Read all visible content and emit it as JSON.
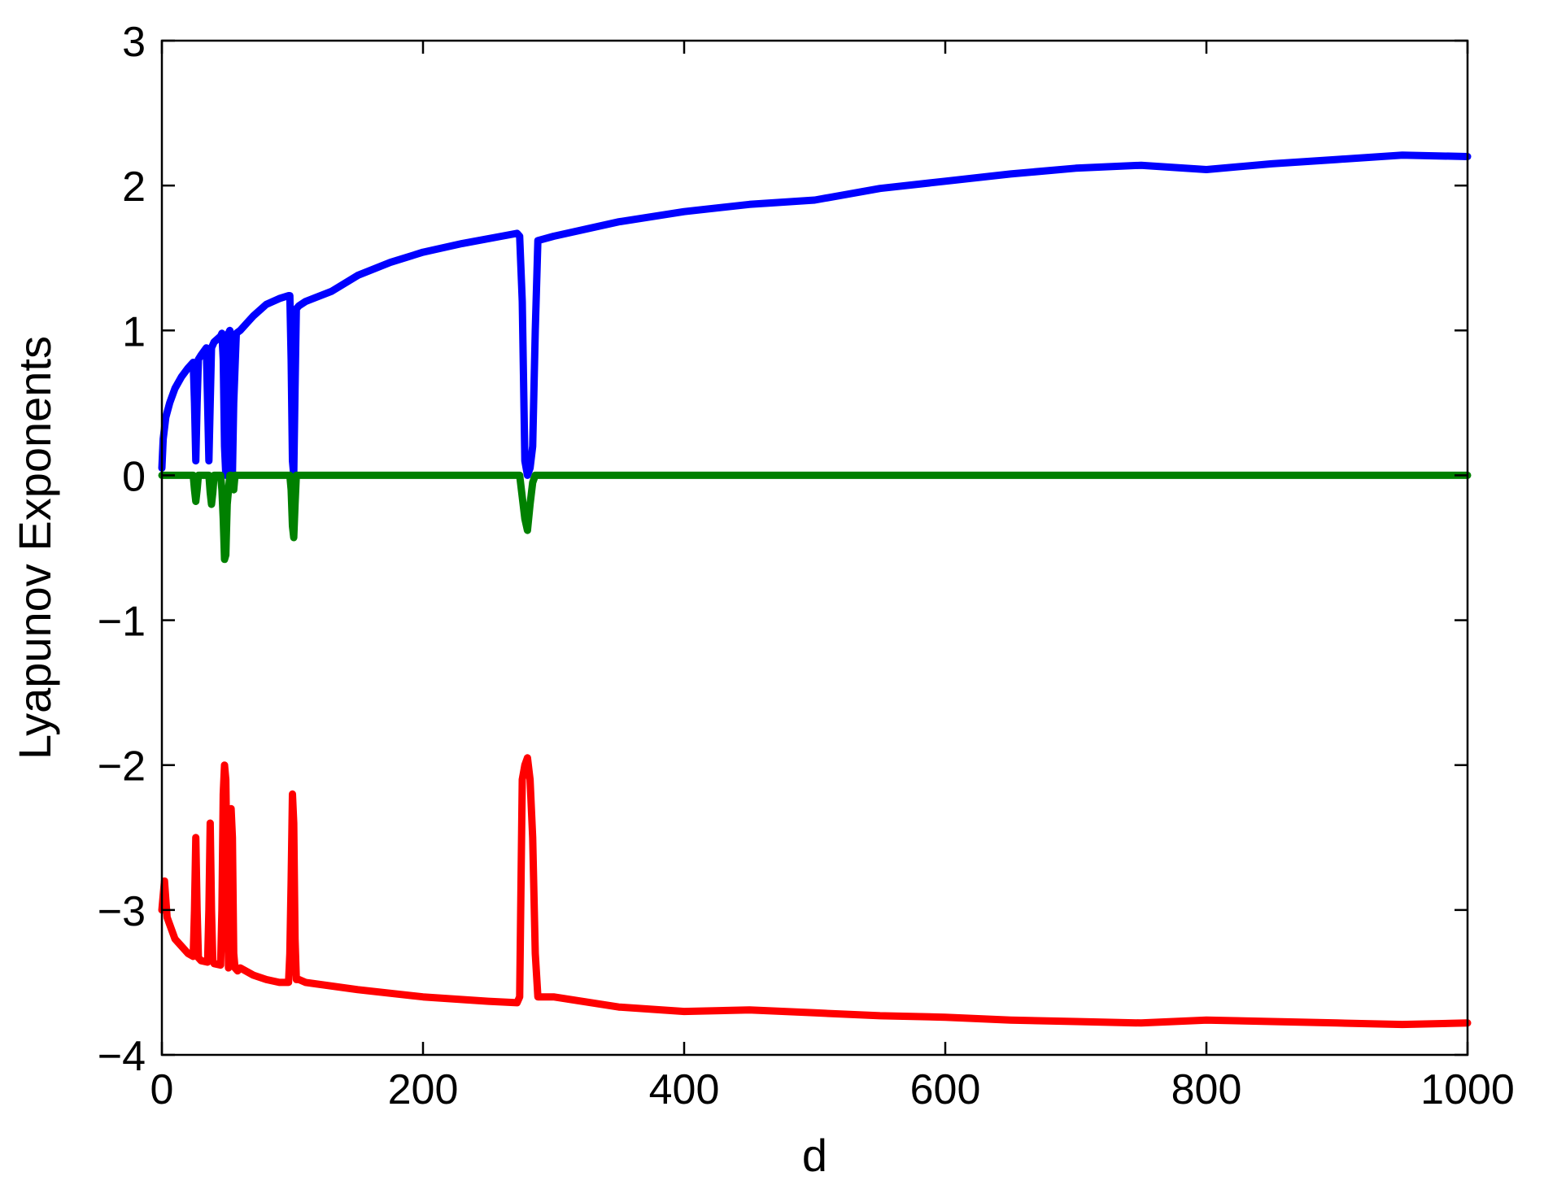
{
  "chart_data": {
    "type": "line",
    "xlabel": "d",
    "ylabel": "Lyapunov Exponents",
    "xlim": [
      0,
      1000
    ],
    "ylim": [
      -4,
      3
    ],
    "xticks": [
      0,
      200,
      400,
      600,
      800,
      1000
    ],
    "yticks": [
      -4,
      -3,
      -2,
      -1,
      0,
      1,
      2,
      3
    ],
    "xtick_labels": [
      "0",
      "200",
      "400",
      "600",
      "800",
      "1000"
    ],
    "ytick_labels": [
      "−4",
      "−3",
      "−2",
      "−1",
      "0",
      "1",
      "2",
      "3"
    ],
    "grid": false,
    "series": [
      {
        "color": "#0000ff",
        "x": [
          0,
          1,
          3,
          6,
          10,
          15,
          20,
          24,
          25,
          26,
          27,
          28,
          30,
          34,
          35,
          36,
          37,
          38,
          40,
          45,
          46,
          47,
          48,
          49,
          50,
          51,
          52,
          53,
          54,
          55,
          57,
          60,
          65,
          70,
          80,
          90,
          97,
          98,
          99,
          100,
          101,
          102,
          103,
          105,
          110,
          130,
          150,
          175,
          200,
          230,
          260,
          272,
          274,
          276,
          278,
          280,
          282,
          284,
          286,
          288,
          300,
          350,
          400,
          450,
          500,
          550,
          600,
          650,
          700,
          750,
          800,
          850,
          900,
          950,
          1000
        ],
        "y": [
          0.05,
          0.25,
          0.4,
          0.5,
          0.6,
          0.68,
          0.74,
          0.78,
          0.5,
          0.1,
          0.5,
          0.8,
          0.83,
          0.88,
          0.5,
          0.1,
          0.5,
          0.88,
          0.92,
          0.96,
          0.98,
          0.8,
          0.2,
          0.0,
          0.5,
          0.98,
          1.0,
          0.5,
          0.0,
          0.5,
          0.98,
          1.0,
          1.05,
          1.1,
          1.18,
          1.22,
          1.24,
          1.24,
          0.8,
          0.1,
          0.0,
          0.6,
          1.15,
          1.17,
          1.2,
          1.27,
          1.38,
          1.47,
          1.54,
          1.6,
          1.65,
          1.67,
          1.65,
          1.2,
          0.1,
          0.0,
          0.05,
          0.2,
          1.0,
          1.62,
          1.65,
          1.75,
          1.82,
          1.87,
          1.9,
          1.98,
          2.03,
          2.08,
          2.12,
          2.14,
          2.11,
          2.15,
          2.18,
          2.21,
          2.2
        ]
      },
      {
        "color": "#008000",
        "x": [
          0,
          24,
          25,
          26,
          27,
          28,
          30,
          36,
          37,
          38,
          39,
          40,
          42,
          45,
          46,
          47,
          48,
          49,
          50,
          52,
          53,
          54,
          55,
          56,
          58,
          98,
          99,
          100,
          101,
          102,
          103,
          105,
          274,
          276,
          278,
          280,
          282,
          284,
          286,
          290,
          500,
          1000
        ],
        "y": [
          0.0,
          0.0,
          -0.1,
          -0.18,
          -0.1,
          0.0,
          0.0,
          0.0,
          -0.12,
          -0.2,
          -0.12,
          0.0,
          0.0,
          0.0,
          -0.1,
          -0.3,
          -0.58,
          -0.55,
          -0.2,
          0.0,
          0.0,
          -0.08,
          -0.1,
          0.0,
          0.0,
          0.0,
          -0.1,
          -0.35,
          -0.43,
          -0.2,
          0.0,
          0.0,
          0.0,
          -0.15,
          -0.3,
          -0.38,
          -0.2,
          -0.05,
          0.0,
          0.0,
          0.0,
          0.0
        ]
      },
      {
        "color": "#ff0000",
        "x": [
          0,
          2,
          4,
          6,
          10,
          15,
          20,
          24,
          25,
          26,
          27,
          28,
          30,
          35,
          36,
          37,
          38,
          39,
          40,
          45,
          46,
          47,
          48,
          49,
          50,
          51,
          52,
          53,
          54,
          55,
          56,
          58,
          60,
          70,
          80,
          90,
          97,
          98,
          99,
          100,
          101,
          102,
          103,
          105,
          110,
          150,
          200,
          250,
          272,
          274,
          276,
          278,
          280,
          282,
          284,
          286,
          288,
          300,
          350,
          400,
          450,
          500,
          550,
          600,
          650,
          700,
          750,
          800,
          850,
          900,
          950,
          1000
        ],
        "y": [
          -3.0,
          -2.8,
          -3.05,
          -3.1,
          -3.2,
          -3.25,
          -3.3,
          -3.32,
          -3.0,
          -2.5,
          -3.0,
          -3.33,
          -3.35,
          -3.36,
          -3.0,
          -2.4,
          -3.0,
          -3.35,
          -3.37,
          -3.38,
          -3.0,
          -2.2,
          -2.0,
          -2.1,
          -2.8,
          -3.4,
          -3.0,
          -2.3,
          -2.5,
          -3.3,
          -3.4,
          -3.42,
          -3.4,
          -3.45,
          -3.48,
          -3.5,
          -3.5,
          -3.3,
          -2.8,
          -2.2,
          -2.4,
          -3.2,
          -3.48,
          -3.48,
          -3.5,
          -3.55,
          -3.6,
          -3.63,
          -3.64,
          -3.6,
          -2.1,
          -2.0,
          -1.95,
          -2.1,
          -2.5,
          -3.3,
          -3.6,
          -3.6,
          -3.67,
          -3.7,
          -3.69,
          -3.71,
          -3.73,
          -3.74,
          -3.76,
          -3.77,
          -3.78,
          -3.76,
          -3.77,
          -3.78,
          -3.79,
          -3.78
        ]
      }
    ]
  }
}
